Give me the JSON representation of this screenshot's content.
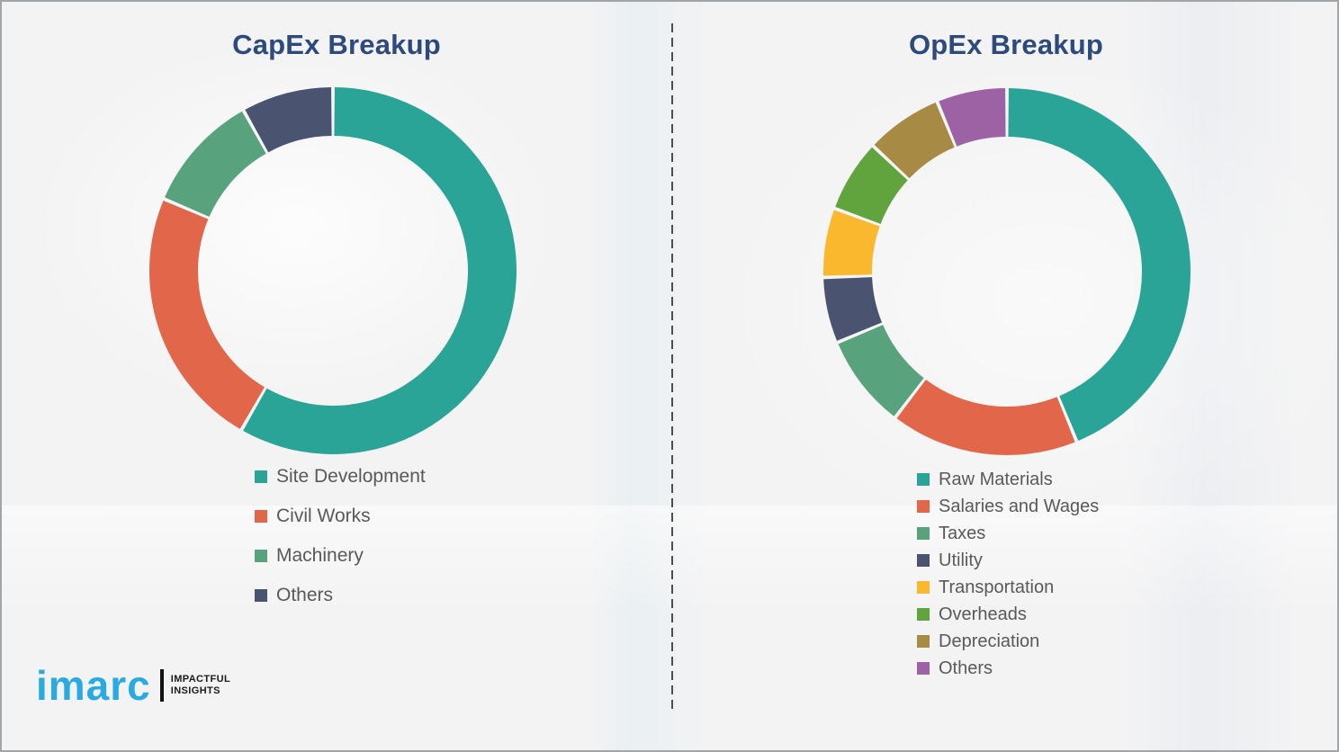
{
  "page": {
    "background_color": "#f3f3f4",
    "divider_color": "#4d4d4d",
    "title_color": "#2c4a7c",
    "legend_text_color": "#595959"
  },
  "chart_data": [
    {
      "type": "pie",
      "subtype": "donut",
      "title": "CapEx Breakup",
      "labels": [
        "Site Development",
        "Civil Works",
        "Machinery",
        "Others"
      ],
      "values": [
        58.3,
        23.1,
        10.5,
        8.1
      ],
      "colors": [
        "#2aa496",
        "#e2674a",
        "#58a27e",
        "#4a536f"
      ],
      "start_angle_deg": 0,
      "direction": "clockwise",
      "legend_position": "below-left",
      "data_labels": "none"
    },
    {
      "type": "pie",
      "subtype": "donut",
      "title": "OpEx Breakup",
      "labels": [
        "Raw Materials",
        "Salaries and Wages",
        "Taxes",
        "Utility",
        "Transportation",
        "Overheads",
        "Depreciation",
        "Others"
      ],
      "values": [
        43.8,
        16.6,
        8.3,
        5.8,
        6.1,
        6.4,
        6.8,
        6.2
      ],
      "colors": [
        "#2aa496",
        "#e2674a",
        "#58a27e",
        "#4a536f",
        "#f9b82e",
        "#61a33c",
        "#a78b44",
        "#9d62a4"
      ],
      "start_angle_deg": 0,
      "direction": "clockwise",
      "legend_position": "below-left",
      "data_labels": "none"
    }
  ],
  "logo": {
    "brand": "imarc",
    "tagline_line1": "IMPACTFUL",
    "tagline_line2": "INSIGHTS",
    "brand_color": "#29abe2"
  }
}
